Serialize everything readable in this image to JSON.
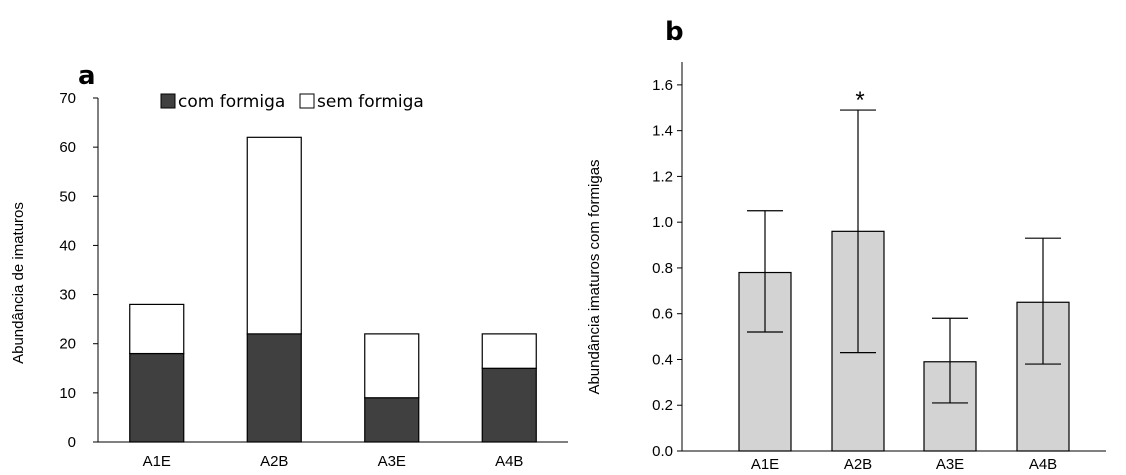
{
  "chart_data": [
    {
      "type": "bar",
      "stacked": true,
      "panel_label": "a",
      "categories": [
        "A1E",
        "A2B",
        "A3E",
        "A4B"
      ],
      "series": [
        {
          "name": "com formiga",
          "values": [
            18,
            22,
            9,
            15
          ],
          "color": "#404040"
        },
        {
          "name": "sem formiga",
          "values": [
            10,
            40,
            13,
            7
          ],
          "color": "#ffffff"
        }
      ],
      "xlabel": "",
      "ylabel": "Abundância de imaturos",
      "ylim": [
        0,
        70
      ],
      "yticks": [
        "0",
        "10",
        "20",
        "30",
        "40",
        "50",
        "60",
        "70"
      ],
      "grid": false,
      "legend_position": "top"
    },
    {
      "type": "bar",
      "panel_label": "b",
      "categories": [
        "A1E",
        "A2B",
        "A3E",
        "A4B"
      ],
      "values": [
        0.78,
        0.96,
        0.39,
        0.65
      ],
      "error_low": [
        0.52,
        0.43,
        0.21,
        0.38
      ],
      "error_high": [
        1.05,
        1.49,
        0.58,
        0.93
      ],
      "annotations": [
        {
          "category": "A2B",
          "text": "*"
        }
      ],
      "bar_color": "#d3d3d3",
      "xlabel": "",
      "ylabel": "Abundância imaturos com formigas",
      "ylim": [
        0,
        1.7
      ],
      "yticks": [
        "0.0",
        "0.2",
        "0.4",
        "0.6",
        "0.8",
        "1.0",
        "1.2",
        "1.4",
        "1.6"
      ],
      "grid": false
    }
  ]
}
